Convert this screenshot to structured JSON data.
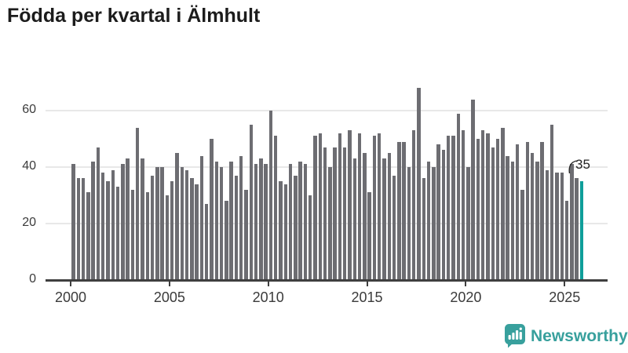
{
  "header": {
    "title": "Födda per kvartal i Älmhult"
  },
  "chart_data": {
    "type": "bar",
    "title": "Födda per kvartal i Älmhult",
    "x_unit": "quarter",
    "start": "2000-Q1",
    "end": "2025-Q4",
    "frequency": "quarterly",
    "values": [
      41,
      36,
      36,
      31,
      42,
      47,
      38,
      35,
      39,
      33,
      41,
      43,
      32,
      54,
      43,
      31,
      37,
      40,
      40,
      30,
      35,
      45,
      40,
      39,
      36,
      34,
      44,
      27,
      50,
      42,
      40,
      28,
      42,
      37,
      44,
      32,
      55,
      41,
      43,
      41,
      60,
      51,
      35,
      34,
      41,
      37,
      42,
      41,
      30,
      51,
      52,
      47,
      40,
      47,
      52,
      47,
      53,
      43,
      52,
      45,
      31,
      51,
      52,
      43,
      45,
      37,
      49,
      49,
      40,
      53,
      68,
      36,
      42,
      40,
      48,
      46,
      51,
      51,
      59,
      53,
      40,
      64,
      50,
      53,
      52,
      47,
      50,
      54,
      44,
      42,
      48,
      32,
      49,
      45,
      42,
      49,
      39,
      55,
      38,
      38,
      28,
      41,
      36,
      35
    ],
    "highlight_last": {
      "value": 35,
      "label": "35"
    },
    "y_ticks": [
      0,
      20,
      40,
      60
    ],
    "x_tick_years": [
      2000,
      2005,
      2010,
      2015,
      2020,
      2025
    ],
    "ylim": [
      0,
      70
    ],
    "xlabel": "",
    "ylabel": "",
    "grid": "horizontal-light",
    "legend": "none"
  },
  "annotation": {
    "last_value_label": "35"
  },
  "colors": {
    "bar": "#6d6d72",
    "highlight": "#0f9e9a",
    "grid": "#e8e8e8",
    "axis": "#3f3f3f",
    "label": "#3b3b3b",
    "title": "#1c1c1c",
    "annotation": "#222222",
    "logo": "#38a09d"
  },
  "footer": {
    "brand": "Newsworthy"
  }
}
